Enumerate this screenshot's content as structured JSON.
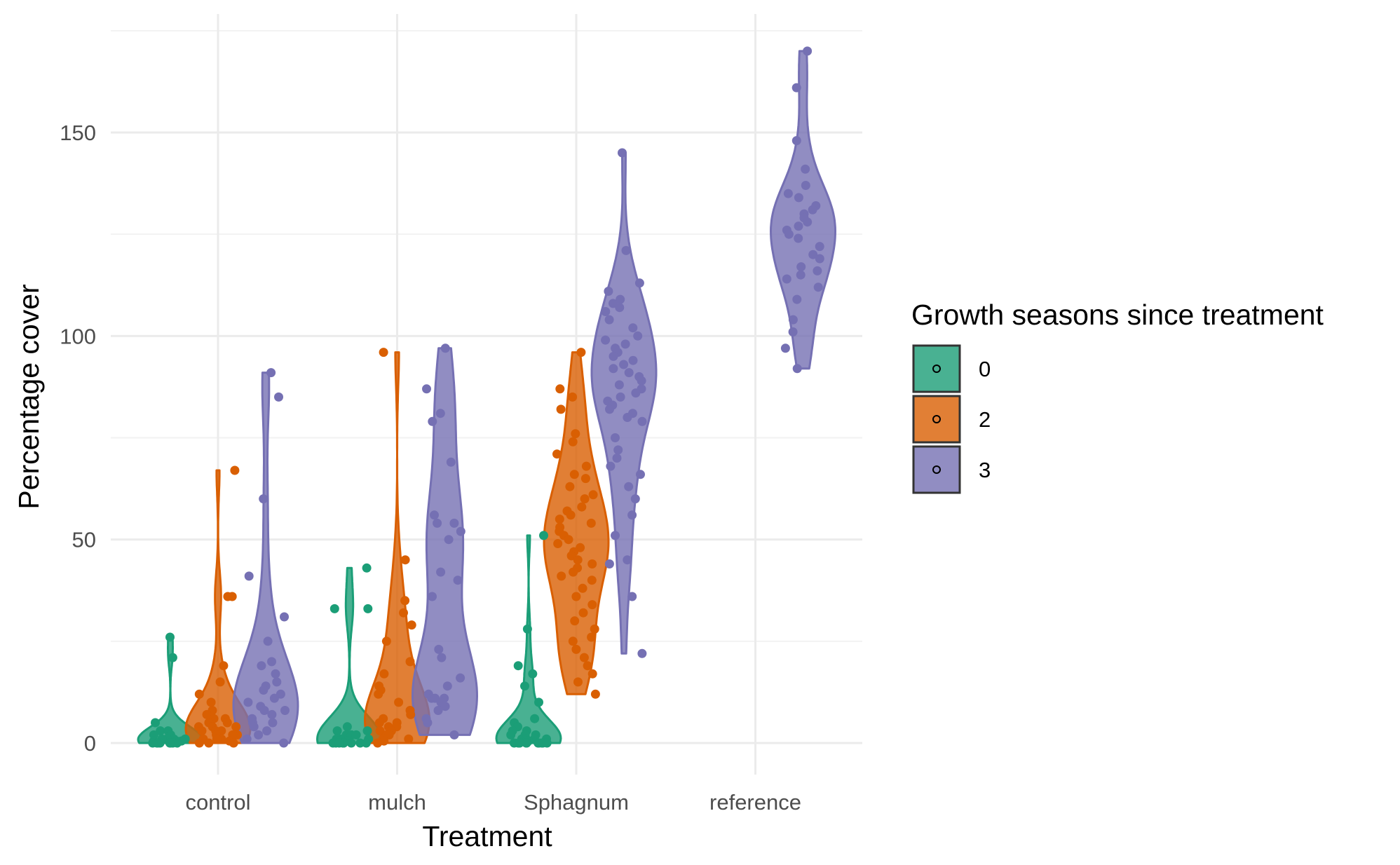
{
  "chart_data": {
    "type": "violin",
    "xlabel": "Treatment",
    "ylabel": "Percentage cover",
    "ylim": [
      -8,
      176
    ],
    "y_ticks": [
      0,
      50,
      100,
      150
    ],
    "y_tick_labels": [
      "0",
      "50",
      "100",
      "150"
    ],
    "categories": [
      "control",
      "mulch",
      "Sphagnum",
      "reference"
    ],
    "grid": true,
    "legend": {
      "title": "Growth seasons since treatment",
      "position": "right",
      "entries": [
        {
          "label": "0",
          "color": "#1b9e77"
        },
        {
          "label": "2",
          "color": "#d95f02"
        },
        {
          "label": "3",
          "color": "#7570b3"
        }
      ]
    },
    "series": [
      {
        "name": "0",
        "color": "#1b9e77",
        "groups": [
          {
            "category": "control",
            "min": 0,
            "max": 26,
            "points": [
              26,
              21,
              5,
              3,
              3,
              2,
              2,
              1,
              1,
              1,
              1,
              0.5,
              0.5,
              0.5,
              0,
              0,
              0,
              0,
              0,
              0,
              0,
              0
            ]
          },
          {
            "category": "mulch",
            "min": 0,
            "max": 43,
            "points": [
              43,
              33,
              33,
              4,
              3,
              3,
              2,
              2,
              2,
              1,
              1,
              1,
              0.5,
              0.5,
              0,
              0,
              0,
              0,
              0,
              0,
              0,
              0,
              0
            ]
          },
          {
            "category": "Sphagnum",
            "min": 0,
            "max": 51,
            "points": [
              51,
              28,
              19,
              17,
              14,
              10,
              6,
              5,
              4,
              3,
              3,
              2,
              2,
              2,
              1,
              1,
              1,
              1,
              0.5,
              0.5,
              0,
              0,
              0,
              0,
              0,
              0,
              0,
              0,
              0,
              0,
              0
            ]
          }
        ]
      },
      {
        "name": "2",
        "color": "#d95f02",
        "groups": [
          {
            "category": "control",
            "min": 0,
            "max": 67,
            "points": [
              67,
              36,
              36,
              19,
              15,
              12,
              10,
              8,
              7,
              6,
              6,
              5,
              5,
              4,
              4,
              4,
              3,
              3,
              3,
              2,
              2,
              2,
              1,
              1,
              1,
              0.5,
              0,
              0,
              0
            ]
          },
          {
            "category": "mulch",
            "min": 0,
            "max": 96,
            "points": [
              96,
              45,
              35,
              32,
              29,
              25,
              20,
              17,
              14,
              13,
              12,
              10,
              8,
              7,
              6,
              5,
              5,
              4,
              4,
              3,
              3,
              2,
              2,
              1,
              1,
              0.5,
              0
            ]
          },
          {
            "category": "Sphagnum",
            "min": 12,
            "max": 96,
            "points": [
              96,
              87,
              85,
              82,
              76,
              74,
              71,
              68,
              66,
              65,
              63,
              61,
              60,
              58,
              57,
              56,
              55,
              54,
              53,
              52,
              51,
              50,
              49,
              48,
              47,
              46,
              45,
              44,
              43,
              42,
              41,
              40,
              38,
              36,
              34,
              32,
              30,
              28,
              26,
              25,
              23,
              21,
              19,
              17,
              15,
              12
            ]
          }
        ]
      },
      {
        "name": "3",
        "color": "#7570b3",
        "groups": [
          {
            "category": "control",
            "min": 0,
            "max": 91,
            "points": [
              91,
              85,
              60,
              41,
              31,
              25,
              20,
              19,
              17,
              15,
              14,
              13,
              12,
              11,
              10,
              9,
              8,
              8,
              7,
              6,
              5,
              5,
              4,
              3,
              2,
              1,
              0
            ]
          },
          {
            "category": "mulch",
            "min": 2,
            "max": 97,
            "points": [
              97,
              87,
              81,
              79,
              69,
              56,
              54,
              54,
              52,
              50,
              42,
              40,
              36,
              23,
              21,
              16,
              14,
              12,
              11,
              11,
              11,
              10,
              9,
              8,
              6,
              5,
              2
            ]
          },
          {
            "category": "Sphagnum",
            "min": 22,
            "max": 145,
            "points": [
              145,
              121,
              113,
              111,
              109,
              108,
              107,
              106,
              104,
              102,
              100,
              99,
              98,
              97,
              96,
              95,
              94,
              93,
              92,
              91,
              90,
              89,
              88,
              87,
              86,
              85,
              84,
              83,
              82,
              81,
              80,
              79,
              75,
              72,
              70,
              68,
              66,
              63,
              60,
              56,
              51,
              45,
              44,
              36,
              22
            ]
          },
          {
            "category": "reference",
            "min": 92,
            "max": 170,
            "points": [
              170,
              161,
              148,
              141,
              137,
              135,
              134,
              132,
              131,
              130,
              129,
              128,
              127,
              126,
              125,
              124,
              122,
              120,
              119,
              117,
              116,
              115,
              114,
              112,
              109,
              104,
              101,
              97,
              92
            ]
          }
        ]
      }
    ]
  }
}
